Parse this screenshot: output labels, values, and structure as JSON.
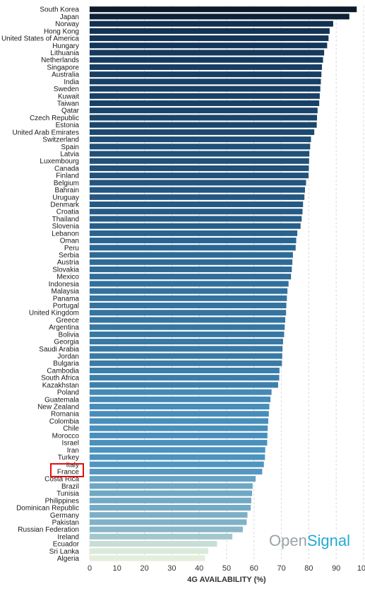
{
  "chart_data": {
    "type": "bar",
    "orientation": "horizontal",
    "categories": [
      "South Korea",
      "Japan",
      "Norway",
      "Hong Kong",
      "United States of America",
      "Hungary",
      "Lithuania",
      "Netherlands",
      "Singapore",
      "Australia",
      "India",
      "Sweden",
      "Kuwait",
      "Taiwan",
      "Qatar",
      "Czech Republic",
      "Estonia",
      "United Arab Emirates",
      "Switzerland",
      "Spain",
      "Latvia",
      "Luxembourg",
      "Canada",
      "Finland",
      "Belgium",
      "Bahrain",
      "Uruguay",
      "Denmark",
      "Croatia",
      "Thailand",
      "Slovenia",
      "Lebanon",
      "Oman",
      "Peru",
      "Serbia",
      "Austria",
      "Slovakia",
      "Mexico",
      "Indonesia",
      "Malaysia",
      "Panama",
      "Portugal",
      "United Kingdom",
      "Greece",
      "Argentina",
      "Bolivia",
      "Georgia",
      "Saudi Arabia",
      "Jordan",
      "Bulgaria",
      "Cambodia",
      "South Africa",
      "Kazakhstan",
      "Poland",
      "Guatemala",
      "New Zealand",
      "Romania",
      "Colombia",
      "Chile",
      "Morocco",
      "Israel",
      "Iran",
      "Turkey",
      "Italy",
      "France",
      "Costa Rica",
      "Brazil",
      "Tunisia",
      "Philippines",
      "Dominican Republic",
      "Germany",
      "Pakistan",
      "Russian Federation",
      "Ireland",
      "Ecuador",
      "Sri Lanka",
      "Algeria"
    ],
    "values": [
      97.5,
      94.8,
      88.9,
      87.6,
      87.2,
      86.7,
      85.6,
      85.2,
      84.8,
      84.6,
      84.4,
      84.2,
      84.0,
      83.8,
      83.2,
      83.0,
      82.9,
      82.0,
      80.8,
      80.5,
      80.2,
      80.1,
      80.0,
      79.9,
      79.0,
      78.6,
      78.4,
      77.9,
      77.7,
      77.4,
      77.0,
      75.8,
      75.4,
      75.2,
      74.2,
      74.0,
      73.8,
      73.5,
      72.6,
      72.2,
      72.0,
      71.8,
      71.7,
      71.4,
      71.2,
      71.0,
      70.6,
      70.4,
      70.3,
      70.2,
      69.3,
      69.2,
      68.8,
      66.4,
      66.0,
      65.6,
      65.4,
      65.2,
      65.0,
      64.9,
      64.8,
      64.1,
      64.0,
      63.6,
      63.0,
      60.6,
      59.5,
      59.3,
      59.0,
      58.8,
      57.6,
      57.3,
      55.9,
      52.1,
      46.5,
      43.3,
      42.1
    ],
    "xlabel": "4G AVAILABILITY (%)",
    "ylabel": "",
    "xlim": [
      0,
      100
    ],
    "xticks": [
      0,
      10,
      20,
      30,
      40,
      50,
      60,
      70,
      80,
      90,
      100
    ],
    "grid": true,
    "highlighted_category": "France",
    "highlight_color": "#e01010",
    "color_ramp": [
      "#0d1a2b",
      "#14365a",
      "#2a6591",
      "#4b92be",
      "#9dc3cc",
      "#e3eedd"
    ]
  },
  "branding": {
    "open": "Open",
    "signal": "Signal",
    "open_color": "#9aa3a8",
    "signal_color": "#27a9d3"
  }
}
